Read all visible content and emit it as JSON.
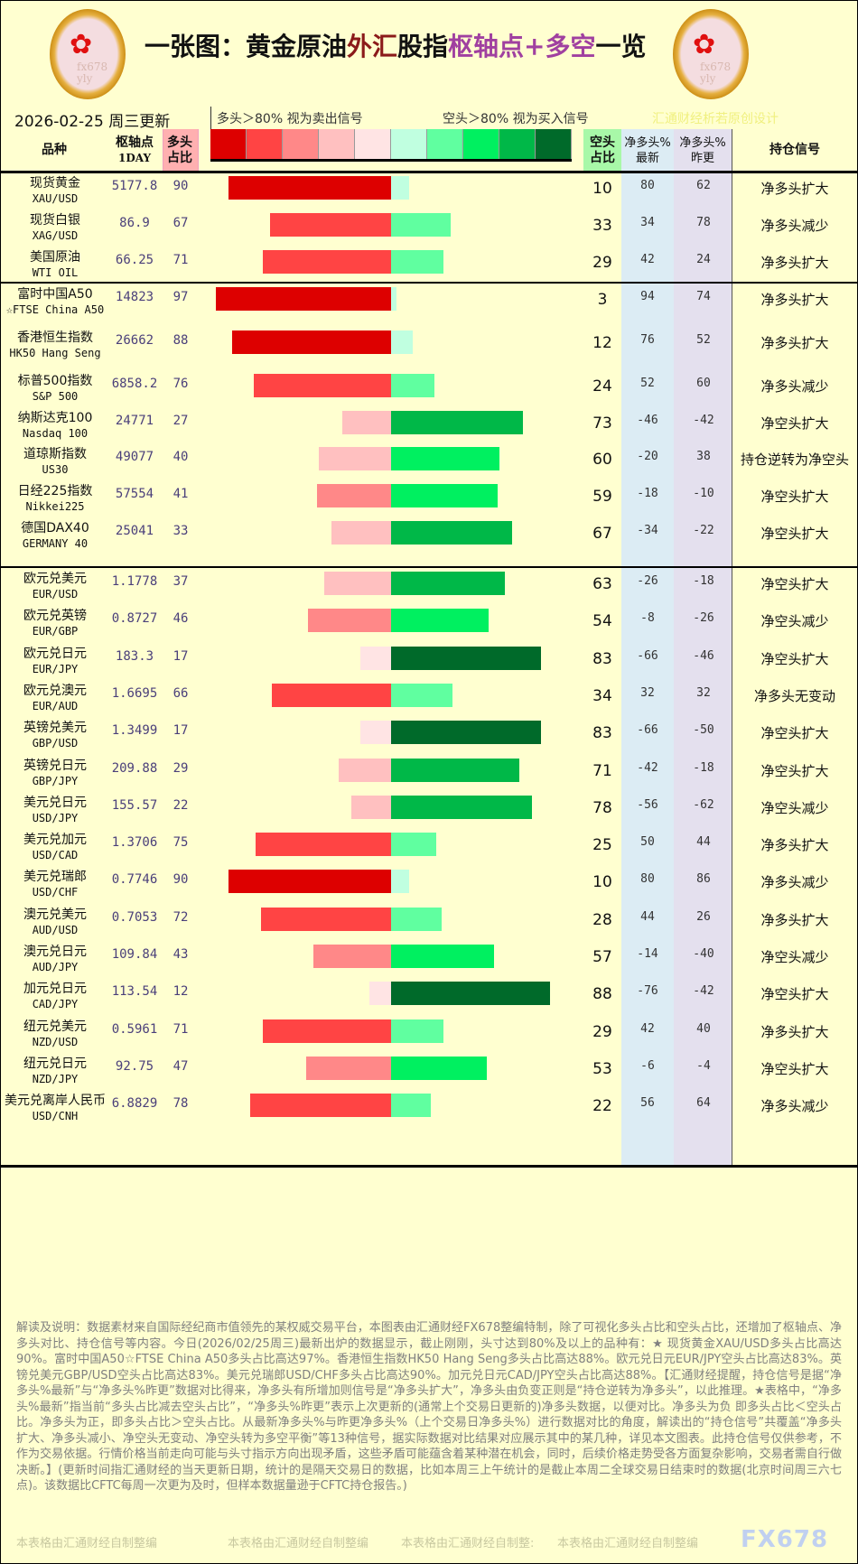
{
  "header": {
    "title_segments": [
      {
        "text": "一张图：黄金原油",
        "color": "#111111"
      },
      {
        "text": "外汇",
        "color": "#8b1a1a"
      },
      {
        "text": "股指",
        "color": "#111111"
      },
      {
        "text": "枢轴点+多空",
        "color": "#a040a0"
      },
      {
        "text": "一览",
        "color": "#111111"
      }
    ],
    "logo_watermark": "fx678 yly",
    "date": "2026-02-25 周三更新",
    "legend_long": "多头＞80% 视为卖出信号",
    "legend_short": "空头＞80% 视为买入信号",
    "credit": "汇通财经析若原创设计",
    "scale_colors": [
      "#dd0000",
      "#ff4444",
      "#ff8888",
      "#ffc0c0",
      "#ffe4e4",
      "#c0ffe0",
      "#60ffa0",
      "#00f060",
      "#00b848",
      "#006a2a"
    ]
  },
  "columns": {
    "name": "品种",
    "pivot": "枢轴点",
    "pivot_sub": "1DAY",
    "long": "多头占比",
    "short": "空头占比",
    "net_latest": "净多头%最新",
    "net_prev": "净多头%昨更",
    "signal": "持仓信号"
  },
  "rows": [
    {
      "name": "现货黄金",
      "code": "XAU/USD",
      "pivot": "5177.8",
      "long": 90,
      "short": 10,
      "net_latest": "80",
      "net_prev": "62",
      "signal": "净多头扩大"
    },
    {
      "name": "现货白银",
      "code": "XAG/USD",
      "pivot": "86.9",
      "long": 67,
      "short": 33,
      "net_latest": "34",
      "net_prev": "78",
      "signal": "净多头减少"
    },
    {
      "name": "美国原油",
      "code": "WTI OIL",
      "pivot": "66.25",
      "long": 71,
      "short": 29,
      "net_latest": "42",
      "net_prev": "24",
      "signal": "净多头扩大"
    },
    {
      "name": "富时中国A50",
      "code": "☆FTSE China A50",
      "pivot": "14823",
      "long": 97,
      "short": 3,
      "net_latest": "94",
      "net_prev": "74",
      "signal": "净多头扩大"
    },
    {
      "name": "香港恒生指数",
      "code": "HK50 Hang Seng",
      "pivot": "26662",
      "long": 88,
      "short": 12,
      "net_latest": "76",
      "net_prev": "52",
      "signal": "净多头扩大"
    },
    {
      "name": "标普500指数",
      "code": "S&P 500",
      "pivot": "6858.2",
      "long": 76,
      "short": 24,
      "net_latest": "52",
      "net_prev": "60",
      "signal": "净多头减少"
    },
    {
      "name": "纳斯达克100",
      "code": "Nasdaq 100",
      "pivot": "24771",
      "long": 27,
      "short": 73,
      "net_latest": "-46",
      "net_prev": "-42",
      "signal": "净空头扩大"
    },
    {
      "name": "道琼斯指数",
      "code": "US30",
      "pivot": "49077",
      "long": 40,
      "short": 60,
      "net_latest": "-20",
      "net_prev": "38",
      "signal": "持仓逆转为净空头"
    },
    {
      "name": "日经225指数",
      "code": "Nikkei225",
      "pivot": "57554",
      "long": 41,
      "short": 59,
      "net_latest": "-18",
      "net_prev": "-10",
      "signal": "净空头扩大"
    },
    {
      "name": "德国DAX40",
      "code": "GERMANY 40",
      "pivot": "25041",
      "long": 33,
      "short": 67,
      "net_latest": "-34",
      "net_prev": "-22",
      "signal": "净空头扩大"
    },
    {
      "name": "欧元兑美元",
      "code": "EUR/USD",
      "pivot": "1.1778",
      "long": 37,
      "short": 63,
      "net_latest": "-26",
      "net_prev": "-18",
      "signal": "净空头扩大"
    },
    {
      "name": "欧元兑英镑",
      "code": "EUR/GBP",
      "pivot": "0.8727",
      "long": 46,
      "short": 54,
      "net_latest": "-8",
      "net_prev": "-26",
      "signal": "净空头减少"
    },
    {
      "name": "欧元兑日元",
      "code": "EUR/JPY",
      "pivot": "183.3",
      "long": 17,
      "short": 83,
      "net_latest": "-66",
      "net_prev": "-46",
      "signal": "净空头扩大"
    },
    {
      "name": "欧元兑澳元",
      "code": "EUR/AUD",
      "pivot": "1.6695",
      "long": 66,
      "short": 34,
      "net_latest": "32",
      "net_prev": "32",
      "signal": "净多头无变动"
    },
    {
      "name": "英镑兑美元",
      "code": "GBP/USD",
      "pivot": "1.3499",
      "long": 17,
      "short": 83,
      "net_latest": "-66",
      "net_prev": "-50",
      "signal": "净空头扩大"
    },
    {
      "name": "英镑兑日元",
      "code": "GBP/JPY",
      "pivot": "209.88",
      "long": 29,
      "short": 71,
      "net_latest": "-42",
      "net_prev": "-18",
      "signal": "净空头扩大"
    },
    {
      "name": "美元兑日元",
      "code": "USD/JPY",
      "pivot": "155.57",
      "long": 22,
      "short": 78,
      "net_latest": "-56",
      "net_prev": "-62",
      "signal": "净空头减少"
    },
    {
      "name": "美元兑加元",
      "code": "USD/CAD",
      "pivot": "1.3706",
      "long": 75,
      "short": 25,
      "net_latest": "50",
      "net_prev": "44",
      "signal": "净多头扩大"
    },
    {
      "name": "美元兑瑞郎",
      "code": "USD/CHF",
      "pivot": "0.7746",
      "long": 90,
      "short": 10,
      "net_latest": "80",
      "net_prev": "86",
      "signal": "净多头减少"
    },
    {
      "name": "澳元兑美元",
      "code": "AUD/USD",
      "pivot": "0.7053",
      "long": 72,
      "short": 28,
      "net_latest": "44",
      "net_prev": "26",
      "signal": "净多头扩大"
    },
    {
      "name": "澳元兑日元",
      "code": "AUD/JPY",
      "pivot": "109.84",
      "long": 43,
      "short": 57,
      "net_latest": "-14",
      "net_prev": "-40",
      "signal": "净空头减少"
    },
    {
      "name": "加元兑日元",
      "code": "CAD/JPY",
      "pivot": "113.54",
      "long": 12,
      "short": 88,
      "net_latest": "-76",
      "net_prev": "-42",
      "signal": "净空头扩大"
    },
    {
      "name": "纽元兑美元",
      "code": "NZD/USD",
      "pivot": "0.5961",
      "long": 71,
      "short": 29,
      "net_latest": "42",
      "net_prev": "40",
      "signal": "净多头扩大"
    },
    {
      "name": "纽元兑日元",
      "code": "NZD/JPY",
      "pivot": "92.75",
      "long": 47,
      "short": 53,
      "net_latest": "-6",
      "net_prev": "-4",
      "signal": "净空头扩大"
    },
    {
      "name": "美元兑离岸人民币",
      "code": "USD/CNH",
      "pivot": "6.8829",
      "long": 78,
      "short": 22,
      "net_latest": "56",
      "net_prev": "64",
      "signal": "净多头减少"
    }
  ],
  "footer": {
    "text": "解读及说明：数据素材来自国际经纪商市值领先的某权威交易平台，本图表由汇通财经FX678整编特制，除了可视化多头占比和空头占比，还增加了枢轴点、净多头对比、持仓信号等内容。今日(2026/02/25周三)最新出炉的数据显示，截止刚刚，头寸达到80%及以上的品种有：★ 现货黄金XAU/USD多头占比高达90%。富时中国A50☆FTSE China A50多头占比高达97%。香港恒生指数HK50 Hang Seng多头占比高达88%。欧元兑日元EUR/JPY空头占比高达83%。英镑兑美元GBP/USD空头占比高达83%。美元兑瑞郎USD/CHF多头占比高达90%。加元兑日元CAD/JPY空头占比高达88%。【汇通财经提醒，持仓信号是据“净多头%最新”与“净多头%昨更”数据对比得来，净多头有所增加则信号是“净多头扩大”，净多头由负变正则是“持仓逆转为净多头”，以此推理。★表格中，“净多头%最新”指当前“多头占比减去空头占比”，“净多头%昨更”表示上次更新的(通常上个交易日更新的)净多头数据，以便对比。净多头为负 即多头占比＜空头占比。净多头为正，即多头占比＞空头占比。从最新净多头%与昨更净多头%（上个交易日净多头%）进行数据对比的角度，解读出的“持仓信号”共覆盖“净多头扩大、净多头减小、净空头无变动、净空头转为多空平衡”等13种信号，据实际数据对比结果对应展示其中的某几种，详见本文图表。此持仓信号仅供参考，不作为交易依据。行情价格当前走向可能与头寸指示方向出现矛盾，这些矛盾可能蕴含着某种潜在机会，同时，后续价格走势受各方面复杂影响，交易者需自行做决断。】(更新时间指汇通财经的当天更新日期，统计的是隔天交易日的数据，比如本周三上午统计的是截止本周二全球交易日结束时的数据(北京时间周三六七点)。该数据比CFTC每周一次更为及时，但样本数据量逊于CFTC持仓报告。)",
    "watermark_1": "本表格由汇通财经自制整编",
    "watermark_2": "本表格由汇通财经自制整编",
    "watermark_3": "本表格由汇通财经自制整:",
    "watermark_4": "本表格由汇通财经自制整编",
    "brand": "FX678"
  }
}
